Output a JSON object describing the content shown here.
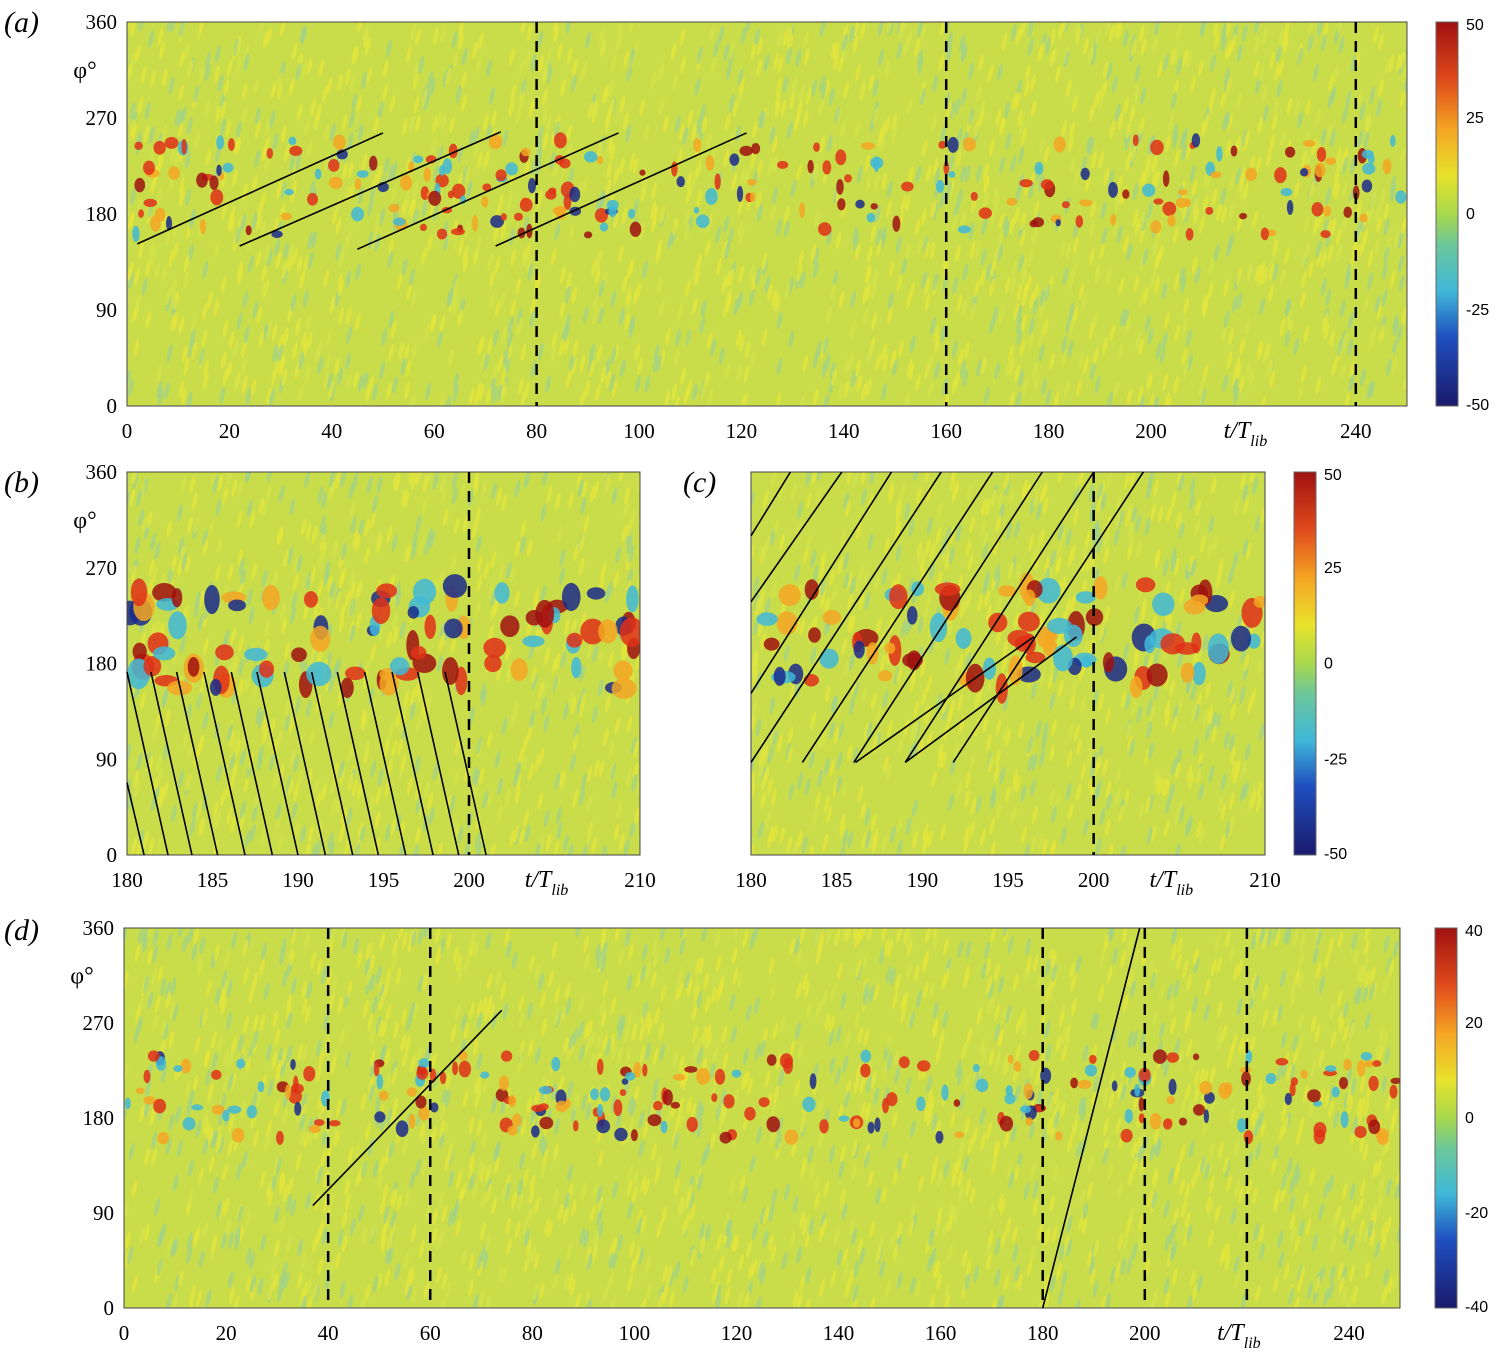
{
  "chart_data": [
    {
      "panel": "(a)",
      "type": "heatmap",
      "xlabel": "t/T",
      "xlabel_sub": "lib",
      "ylabel": "φ°",
      "xlim": [
        0,
        250
      ],
      "ylim": [
        0,
        360
      ],
      "xticks": [
        0,
        20,
        40,
        60,
        80,
        100,
        120,
        140,
        160,
        180,
        200,
        240
      ],
      "yticks": [
        0,
        90,
        180,
        270,
        360
      ],
      "dashed_lines_x": [
        80,
        160,
        240
      ],
      "solid_lines": [
        [
          [
            2,
            152
          ],
          [
            50,
            256
          ]
        ],
        [
          [
            22,
            150
          ],
          [
            73,
            257
          ]
        ],
        [
          [
            45,
            147
          ],
          [
            96,
            256
          ]
        ],
        [
          [
            72,
            150
          ],
          [
            121,
            256
          ]
        ]
      ],
      "band_center": 205,
      "band_amplitude": 45,
      "colorbar": {
        "min": -50,
        "max": 50,
        "ticks": [
          50,
          25,
          0,
          -25,
          -50
        ]
      }
    },
    {
      "panel": "(b)",
      "type": "heatmap",
      "xlabel": "t/T",
      "xlabel_sub": "lib",
      "ylabel": "φ°",
      "xlim": [
        180,
        210
      ],
      "ylim": [
        0,
        360
      ],
      "xticks": [
        180,
        185,
        190,
        195,
        200,
        210
      ],
      "yticks": [
        0,
        90,
        180,
        270,
        360
      ],
      "dashed_lines_x": [
        200
      ],
      "solid_lines": [
        [
          [
            180,
            172
          ],
          [
            182.4,
            0
          ]
        ],
        [
          [
            181.4,
            172
          ],
          [
            183.8,
            0
          ]
        ],
        [
          [
            182.9,
            172
          ],
          [
            185.3,
            0
          ]
        ],
        [
          [
            184.5,
            172
          ],
          [
            186.9,
            0
          ]
        ],
        [
          [
            186.1,
            172
          ],
          [
            188.5,
            0
          ]
        ],
        [
          [
            187.6,
            172
          ],
          [
            190,
            0
          ]
        ],
        [
          [
            189.2,
            172
          ],
          [
            191.6,
            0
          ]
        ],
        [
          [
            190.8,
            172
          ],
          [
            193.2,
            0
          ]
        ],
        [
          [
            192.3,
            172
          ],
          [
            194.7,
            0
          ]
        ],
        [
          [
            193.9,
            172
          ],
          [
            196.3,
            0
          ]
        ],
        [
          [
            195.5,
            172
          ],
          [
            197.9,
            0
          ]
        ],
        [
          [
            197.0,
            172
          ],
          [
            199.4,
            0
          ]
        ],
        [
          [
            198.6,
            172
          ],
          [
            201.0,
            0
          ]
        ],
        [
          [
            180,
            68
          ],
          [
            181,
            0
          ]
        ]
      ],
      "band_center": 205,
      "band_amplitude": 50
    },
    {
      "panel": "(c)",
      "type": "heatmap",
      "xlabel": "t/T",
      "xlabel_sub": "lib",
      "ylabel": "",
      "xlim": [
        180,
        210
      ],
      "ylim": [
        0,
        360
      ],
      "xticks": [
        180,
        185,
        190,
        195,
        200,
        210
      ],
      "yticks": [],
      "dashed_lines_x": [
        200
      ],
      "solid_lines": [
        [
          [
            180,
            300
          ],
          [
            182.3,
            360
          ]
        ],
        [
          [
            180,
            238
          ],
          [
            185.3,
            360
          ]
        ],
        [
          [
            180,
            152
          ],
          [
            188.2,
            360
          ]
        ],
        [
          [
            180,
            87
          ],
          [
            191.1,
            360
          ]
        ],
        [
          [
            183,
            87
          ],
          [
            194.1,
            360
          ]
        ],
        [
          [
            186,
            87
          ],
          [
            197.0,
            360
          ]
        ],
        [
          [
            189,
            87
          ],
          [
            200.0,
            360
          ]
        ],
        [
          [
            191.8,
            87
          ],
          [
            202.9,
            360
          ]
        ],
        [
          [
            186.1,
            87
          ],
          [
            196.5,
            205
          ]
        ],
        [
          [
            189,
            87
          ],
          [
            199,
            205
          ]
        ]
      ],
      "band_center": 205,
      "band_amplitude": 50,
      "colorbar": {
        "min": -50,
        "max": 50,
        "ticks": [
          50,
          25,
          0,
          -25,
          -50
        ]
      }
    },
    {
      "panel": "(d)",
      "type": "heatmap",
      "xlabel": "t/T",
      "xlabel_sub": "lib",
      "ylabel": "φ°",
      "xlim": [
        0,
        250
      ],
      "ylim": [
        0,
        360
      ],
      "xticks": [
        0,
        20,
        40,
        60,
        80,
        100,
        120,
        140,
        160,
        180,
        200,
        240
      ],
      "yticks": [
        0,
        90,
        180,
        270,
        360
      ],
      "dashed_lines_x": [
        40,
        60,
        180,
        200,
        220
      ],
      "solid_lines": [
        [
          [
            37,
            97
          ],
          [
            74,
            282
          ]
        ],
        [
          [
            180,
            0
          ],
          [
            199,
            360
          ]
        ]
      ],
      "band_center": 200,
      "band_amplitude": 40,
      "colorbar": {
        "min": -40,
        "max": 40,
        "ticks": [
          40,
          20,
          0,
          -20,
          -40
        ]
      }
    }
  ],
  "colormap": [
    "#1a1a6b",
    "#1f5fd0",
    "#3fb8d8",
    "#6cc79a",
    "#a8d84c",
    "#e8e22c",
    "#f5a623",
    "#e04a1c",
    "#a01010"
  ]
}
